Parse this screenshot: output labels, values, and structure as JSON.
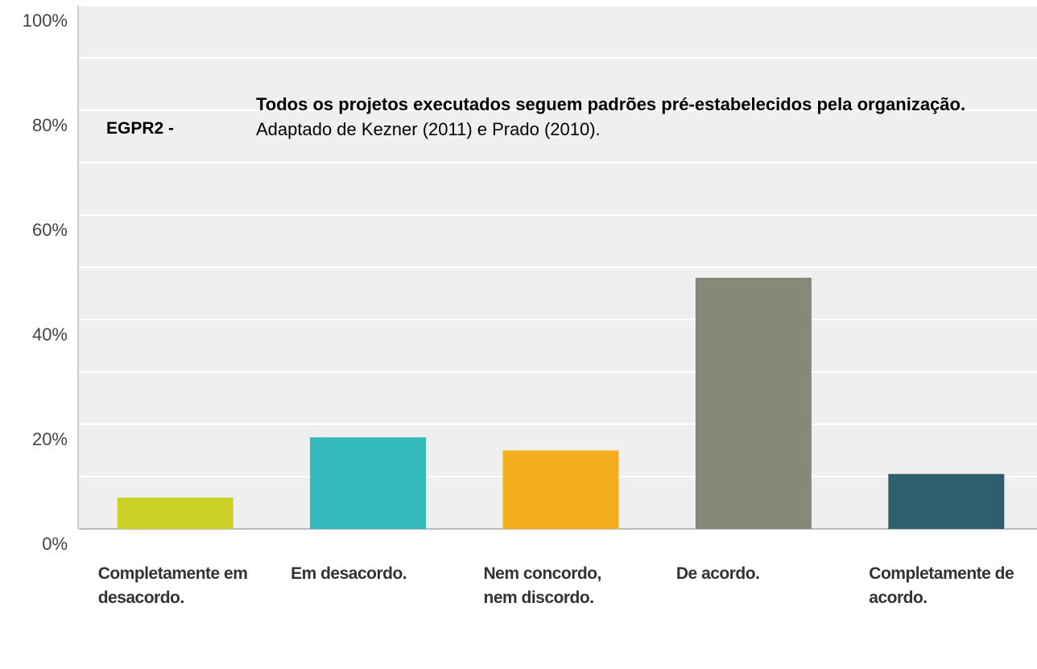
{
  "chart_data": {
    "type": "bar",
    "title_label": "EGPR2 -",
    "title": "Todos os projetos executados seguem padrões pré-estabelecidos pela organização.",
    "subtitle": "Adaptado de Kezner (2011) e Prado (2010).",
    "categories": [
      "Completamente em desacordo.",
      "Em desacordo.",
      "Nem concordo, nem discordo.",
      "De acordo.",
      "Completamente de acordo."
    ],
    "values": [
      6,
      17.5,
      15,
      48,
      10.5
    ],
    "colors": [
      "#cdd22b",
      "#33b8bc",
      "#f5ae1f",
      "#87887a",
      "#2d5f6e"
    ],
    "ylim": [
      0,
      100
    ],
    "yticks": [
      {
        "value": 0,
        "label": "0%"
      },
      {
        "value": 20,
        "label": "20%"
      },
      {
        "value": 40,
        "label": "40%"
      },
      {
        "value": 60,
        "label": "60%"
      },
      {
        "value": 80,
        "label": "80%"
      },
      {
        "value": 100,
        "label": "100%"
      }
    ],
    "minor_yticks": [
      10,
      30,
      50,
      70,
      90
    ],
    "grid": true
  }
}
